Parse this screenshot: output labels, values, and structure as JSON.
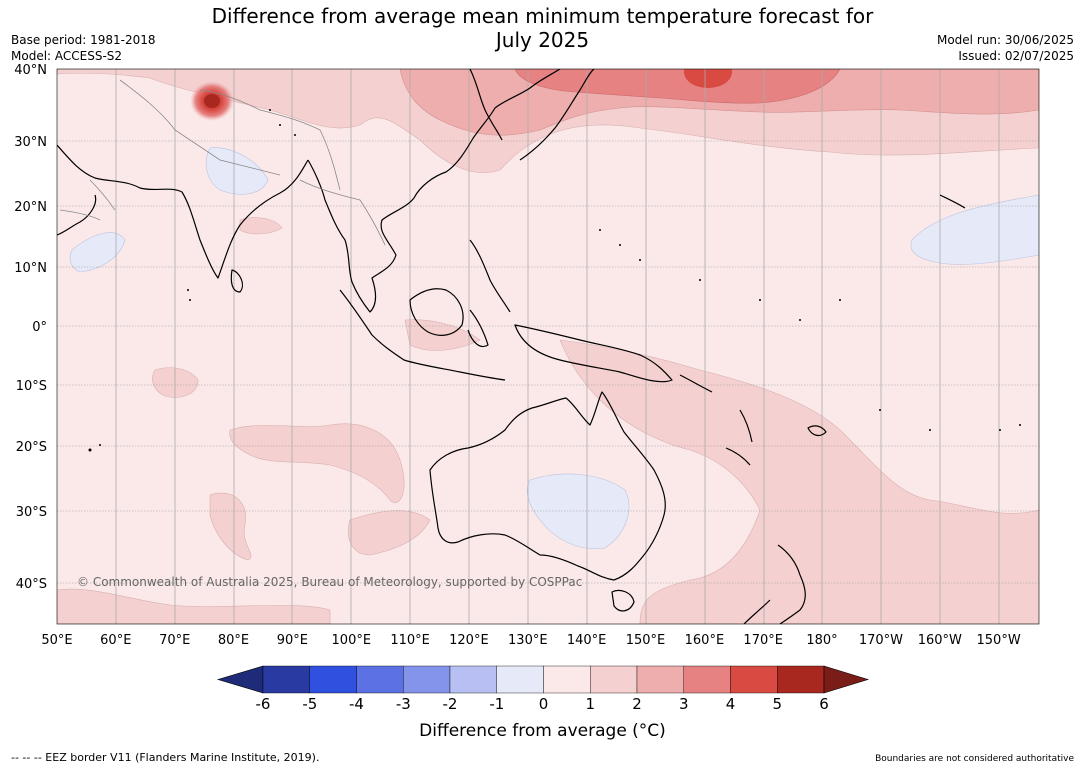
{
  "title_line1": "Difference from average mean minimum temperature forecast for",
  "title_line2": "July 2025",
  "base_period": "Base period: 1981-2018",
  "model": "Model: ACCESS-S2",
  "model_run": "Model run: 30/06/2025",
  "issued": "Issued: 02/07/2025",
  "copyright": "© Commonwealth of Australia 2025, Bureau of Meteorology, supported by COSPPac",
  "lat_labels": [
    "40°N",
    "30°N",
    "20°N",
    "10°N",
    "0°",
    "10°S",
    "20°S",
    "30°S",
    "40°S"
  ],
  "lat_values": [
    40,
    30,
    20,
    10,
    0,
    -10,
    -20,
    -30,
    -40
  ],
  "lon_labels": [
    "50°E",
    "60°E",
    "70°E",
    "80°E",
    "90°E",
    "100°E",
    "110°E",
    "120°E",
    "130°E",
    "140°E",
    "150°E",
    "160°E",
    "170°E",
    "180°",
    "170°W",
    "160°W",
    "150°W"
  ],
  "lon_values": [
    50,
    60,
    70,
    80,
    90,
    100,
    110,
    120,
    130,
    140,
    150,
    160,
    170,
    180,
    190,
    200,
    210
  ],
  "colorbar": {
    "ticks": [
      "-6",
      "-5",
      "-4",
      "-3",
      "-2",
      "-1",
      "0",
      "1",
      "2",
      "3",
      "4",
      "5",
      "6"
    ],
    "colors": [
      "#2a3aa3",
      "#3050e0",
      "#5c72e4",
      "#8494ea",
      "#b8c0f3",
      "#e6eaf8",
      "#fbe9e9",
      "#f4d0d0",
      "#eeaeae",
      "#e68282",
      "#d84a42",
      "#a82820"
    ],
    "extend_low_color": "#1d2b78",
    "extend_high_color": "#7a1c18",
    "label": "Difference from average (°C)"
  },
  "footer_left": "--  --  -- EEZ border V11 (Flanders Marine Institute, 2019).",
  "footer_right": "Boundaries are not considered authoritative"
}
